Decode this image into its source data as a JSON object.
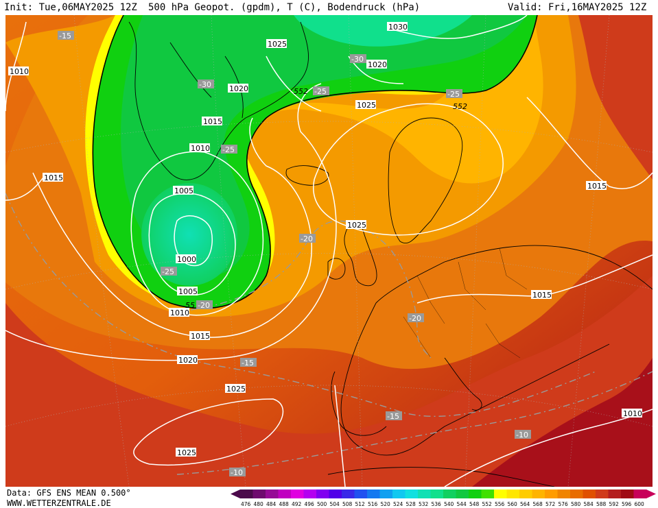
{
  "header": {
    "init": "Init: Tue,06MAY2025 12Z",
    "title": "500 hPa Geopot. (gpdm), T (C), Bodendruck (hPa)",
    "valid": "Valid: Fri,16MAY2025 12Z"
  },
  "footer": {
    "data_source": "Data: GFS ENS MEAN 0.500°",
    "website": "WWW.WETTERZENTRALE.DE"
  },
  "legend": {
    "values": [
      "476",
      "480",
      "484",
      "488",
      "492",
      "496",
      "500",
      "504",
      "508",
      "512",
      "516",
      "520",
      "524",
      "528",
      "532",
      "536",
      "540",
      "544",
      "548",
      "552",
      "556",
      "560",
      "564",
      "568",
      "572",
      "576",
      "580",
      "584",
      "588",
      "592",
      "596",
      "600"
    ],
    "colors": [
      "#4b0a4b",
      "#6e0a6e",
      "#960a96",
      "#c000c0",
      "#e000e0",
      "#b400f0",
      "#8000f0",
      "#5000e8",
      "#3a28e8",
      "#2050f0",
      "#1478f0",
      "#10a0f0",
      "#10c8f0",
      "#10e0e0",
      "#10e0b4",
      "#10e08c",
      "#10d060",
      "#10c840",
      "#10d010",
      "#40e000",
      "#ffff00",
      "#ffe600",
      "#ffcc00",
      "#ffb400",
      "#ff9c00",
      "#f08400",
      "#e86c00",
      "#e05000",
      "#d03a1a",
      "#b41e1e",
      "#a00a14",
      "#c8005a"
    ]
  },
  "map_labels": {
    "isobars": [
      "1010",
      "1015",
      "1025",
      "1020",
      "1030",
      "1020",
      "1015",
      "1010",
      "1025",
      "1015",
      "1005",
      "1000",
      "1005",
      "1010",
      "1015",
      "1020",
      "1025",
      "1025",
      "1025",
      "1015",
      "1015",
      "1010"
    ],
    "isotherms": [
      "-15",
      "-30",
      "-30",
      "-25",
      "-25",
      "-25",
      "-20",
      "-25",
      "-20",
      "-20",
      "-15",
      "-15",
      "-10",
      "-10"
    ],
    "geopotential": [
      "552",
      "552",
      "55"
    ]
  }
}
